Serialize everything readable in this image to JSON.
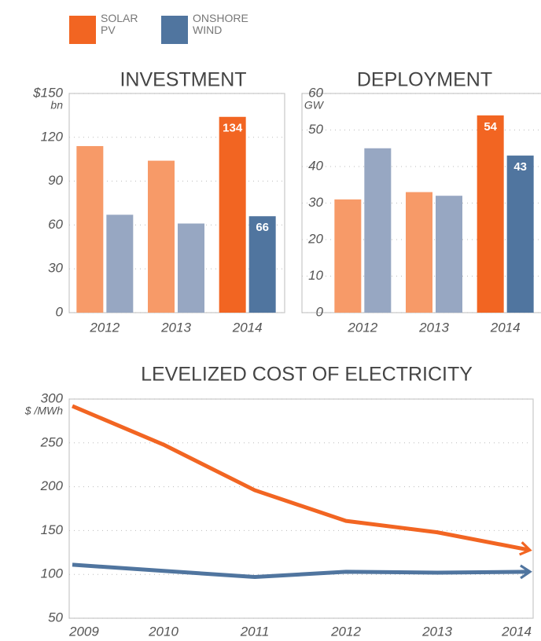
{
  "chart_data": [
    {
      "type": "bar",
      "title": "INVESTMENT",
      "categories": [
        "2012",
        "2013",
        "2014"
      ],
      "highlight": "2014",
      "series": [
        {
          "name": "SOLAR PV",
          "color": "#f26522",
          "faded_color": "#f79a68",
          "values": [
            114,
            104,
            134
          ]
        },
        {
          "name": "ONSHORE WIND",
          "color": "#50759f",
          "faded_color": "#97a7c2",
          "values": [
            67,
            61,
            66
          ]
        }
      ],
      "ylim": [
        0,
        150
      ],
      "yticks": [
        0,
        30,
        60,
        90,
        120,
        {
          "value": 150,
          "label": "$150"
        }
      ],
      "y_unit": "bn",
      "grid": true
    },
    {
      "type": "bar",
      "title": "DEPLOYMENT",
      "categories": [
        "2012",
        "2013",
        "2014"
      ],
      "highlight": "2014",
      "series": [
        {
          "name": "SOLAR PV",
          "color": "#f26522",
          "faded_color": "#f79a68",
          "values": [
            31,
            33,
            54
          ]
        },
        {
          "name": "ONSHORE WIND",
          "color": "#50759f",
          "faded_color": "#97a7c2",
          "values": [
            45,
            32,
            43
          ]
        }
      ],
      "ylim": [
        0,
        60
      ],
      "yticks": [
        0,
        10,
        20,
        30,
        40,
        50,
        60
      ],
      "y_unit": "GW",
      "grid": true
    },
    {
      "type": "line",
      "title": "LEVELIZED COST OF ELECTRICITY",
      "categories": [
        "2009",
        "2010",
        "2011",
        "2012",
        "2013",
        "2014"
      ],
      "series": [
        {
          "name": "SOLAR PV",
          "color": "#f26522",
          "values": [
            292,
            248,
            196,
            161,
            148,
            128
          ]
        },
        {
          "name": "ONSHORE WIND",
          "color": "#50759f",
          "values": [
            111,
            104,
            97,
            103,
            102,
            103
          ]
        }
      ],
      "ylim": [
        50,
        300
      ],
      "yticks": [
        50,
        100,
        150,
        200,
        250,
        300
      ],
      "y_unit": "$ /MWh",
      "grid": true
    }
  ]
}
